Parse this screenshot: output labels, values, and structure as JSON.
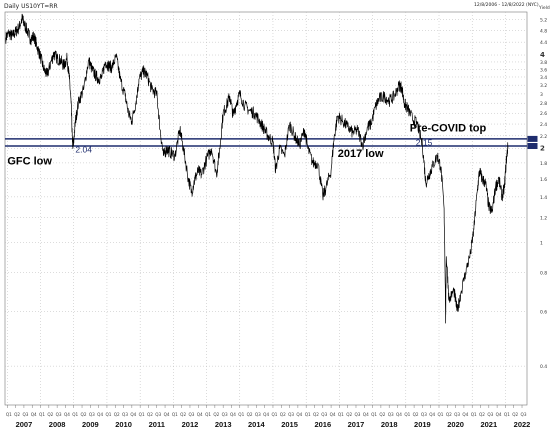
{
  "header": {
    "title": "Daily US10YT=RR",
    "date_range": "12/8/2006 - 12/8/2022 (NYC)",
    "y_unit": "Yield"
  },
  "chart_data": {
    "type": "line",
    "series": [
      {
        "values": [
          [
            2006.95,
            4.55
          ],
          [
            2007.05,
            4.7
          ],
          [
            2007.15,
            4.6
          ],
          [
            2007.25,
            4.75
          ],
          [
            2007.35,
            4.9
          ],
          [
            2007.45,
            5.25
          ],
          [
            2007.5,
            5.05
          ],
          [
            2007.6,
            4.8
          ],
          [
            2007.7,
            4.5
          ],
          [
            2007.8,
            4.6
          ],
          [
            2007.9,
            4.25
          ],
          [
            2008.0,
            3.95
          ],
          [
            2008.1,
            3.6
          ],
          [
            2008.2,
            3.45
          ],
          [
            2008.3,
            3.75
          ],
          [
            2008.4,
            4.05
          ],
          [
            2008.5,
            3.9
          ],
          [
            2008.6,
            3.85
          ],
          [
            2008.7,
            3.7
          ],
          [
            2008.8,
            3.9
          ],
          [
            2008.87,
            3.35
          ],
          [
            2008.92,
            2.8
          ],
          [
            2008.96,
            2.1
          ],
          [
            2008.99,
            2.04
          ],
          [
            2009.05,
            2.45
          ],
          [
            2009.15,
            2.85
          ],
          [
            2009.3,
            3.1
          ],
          [
            2009.45,
            3.85
          ],
          [
            2009.55,
            3.6
          ],
          [
            2009.65,
            3.45
          ],
          [
            2009.75,
            3.35
          ],
          [
            2009.85,
            3.4
          ],
          [
            2009.95,
            3.8
          ],
          [
            2010.05,
            3.7
          ],
          [
            2010.15,
            3.65
          ],
          [
            2010.28,
            3.95
          ],
          [
            2010.4,
            3.35
          ],
          [
            2010.55,
            2.95
          ],
          [
            2010.65,
            2.6
          ],
          [
            2010.75,
            2.45
          ],
          [
            2010.88,
            2.85
          ],
          [
            2010.97,
            3.35
          ],
          [
            2011.1,
            3.55
          ],
          [
            2011.2,
            3.45
          ],
          [
            2011.35,
            3.1
          ],
          [
            2011.5,
            3.0
          ],
          [
            2011.6,
            2.3
          ],
          [
            2011.7,
            1.9
          ],
          [
            2011.8,
            2.0
          ],
          [
            2011.9,
            1.95
          ],
          [
            2012.05,
            1.9
          ],
          [
            2012.2,
            2.3
          ],
          [
            2012.3,
            2.0
          ],
          [
            2012.45,
            1.6
          ],
          [
            2012.55,
            1.45
          ],
          [
            2012.65,
            1.6
          ],
          [
            2012.75,
            1.7
          ],
          [
            2012.85,
            1.65
          ],
          [
            2013.0,
            1.85
          ],
          [
            2013.15,
            2.0
          ],
          [
            2013.3,
            1.65
          ],
          [
            2013.4,
            2.0
          ],
          [
            2013.5,
            2.6
          ],
          [
            2013.6,
            2.75
          ],
          [
            2013.7,
            2.95
          ],
          [
            2013.8,
            2.55
          ],
          [
            2013.9,
            2.8
          ],
          [
            2014.0,
            3.0
          ],
          [
            2014.15,
            2.75
          ],
          [
            2014.3,
            2.65
          ],
          [
            2014.45,
            2.6
          ],
          [
            2014.6,
            2.45
          ],
          [
            2014.75,
            2.3
          ],
          [
            2014.85,
            2.2
          ],
          [
            2015.0,
            2.1
          ],
          [
            2015.08,
            1.7
          ],
          [
            2015.2,
            2.0
          ],
          [
            2015.35,
            1.9
          ],
          [
            2015.5,
            2.4
          ],
          [
            2015.65,
            2.2
          ],
          [
            2015.8,
            2.05
          ],
          [
            2015.95,
            2.3
          ],
          [
            2016.05,
            2.0
          ],
          [
            2016.2,
            1.8
          ],
          [
            2016.35,
            1.8
          ],
          [
            2016.5,
            1.4
          ],
          [
            2016.6,
            1.5
          ],
          [
            2016.75,
            1.7
          ],
          [
            2016.85,
            2.2
          ],
          [
            2016.95,
            2.55
          ],
          [
            2017.1,
            2.45
          ],
          [
            2017.25,
            2.35
          ],
          [
            2017.4,
            2.25
          ],
          [
            2017.55,
            2.3
          ],
          [
            2017.7,
            2.05
          ],
          [
            2017.85,
            2.35
          ],
          [
            2017.95,
            2.4
          ],
          [
            2018.1,
            2.75
          ],
          [
            2018.2,
            2.9
          ],
          [
            2018.35,
            2.95
          ],
          [
            2018.5,
            2.85
          ],
          [
            2018.65,
            2.95
          ],
          [
            2018.8,
            3.2
          ],
          [
            2018.88,
            3.15
          ],
          [
            2018.95,
            2.8
          ],
          [
            2019.05,
            2.7
          ],
          [
            2019.2,
            2.5
          ],
          [
            2019.35,
            2.4
          ],
          [
            2019.5,
            2.05
          ],
          [
            2019.6,
            1.55
          ],
          [
            2019.7,
            1.65
          ],
          [
            2019.8,
            1.75
          ],
          [
            2019.95,
            1.9
          ],
          [
            2020.05,
            1.75
          ],
          [
            2020.15,
            1.3
          ],
          [
            2020.2,
            0.55
          ],
          [
            2020.22,
            0.9
          ],
          [
            2020.3,
            0.65
          ],
          [
            2020.45,
            0.7
          ],
          [
            2020.55,
            0.6
          ],
          [
            2020.65,
            0.68
          ],
          [
            2020.8,
            0.8
          ],
          [
            2020.95,
            0.92
          ],
          [
            2021.05,
            1.1
          ],
          [
            2021.15,
            1.45
          ],
          [
            2021.22,
            1.7
          ],
          [
            2021.3,
            1.6
          ],
          [
            2021.4,
            1.55
          ],
          [
            2021.5,
            1.3
          ],
          [
            2021.6,
            1.25
          ],
          [
            2021.7,
            1.5
          ],
          [
            2021.8,
            1.6
          ],
          [
            2021.9,
            1.4
          ],
          [
            2021.97,
            1.5
          ],
          [
            2022.03,
            1.85
          ],
          [
            2022.08,
            2.05
          ]
        ]
      }
    ],
    "x_range": [
      2006.93,
      2022.65
    ],
    "y_range": [
      0.3,
      5.5
    ],
    "y_scale": "log",
    "x_labels": [
      "2007",
      "2008",
      "2009",
      "2010",
      "2011",
      "2012",
      "2013",
      "2014",
      "2015",
      "2016",
      "2017",
      "2018",
      "2019",
      "2020",
      "2021",
      "2022"
    ],
    "quarter_labels": [
      "Q1",
      "Q2",
      "Q3",
      "Q4"
    ],
    "y_ticks": [
      "5.2",
      "4.8",
      "4.4",
      "4",
      "3.8",
      "3.6",
      "3.4",
      "3.2",
      "3",
      "2.8",
      "2.6",
      "2.4",
      "2.2",
      "2",
      "1.8",
      "1.6",
      "1.4",
      "1.2",
      "1",
      "0.8",
      "0.6",
      "0.4"
    ],
    "horizontal_lines": [
      {
        "value": 2.15,
        "label": "2.15"
      },
      {
        "value": 2.04,
        "label": "2.04"
      }
    ],
    "annotations": [
      {
        "text": "GFC low"
      },
      {
        "text": "2017 low"
      },
      {
        "text": "Pre-COVID top"
      }
    ],
    "grid": true,
    "colors": {
      "line": "#000000",
      "hline": "#1f2d6e",
      "grid": "#b8b8b8",
      "hline_label": "#1f2d6e"
    }
  }
}
